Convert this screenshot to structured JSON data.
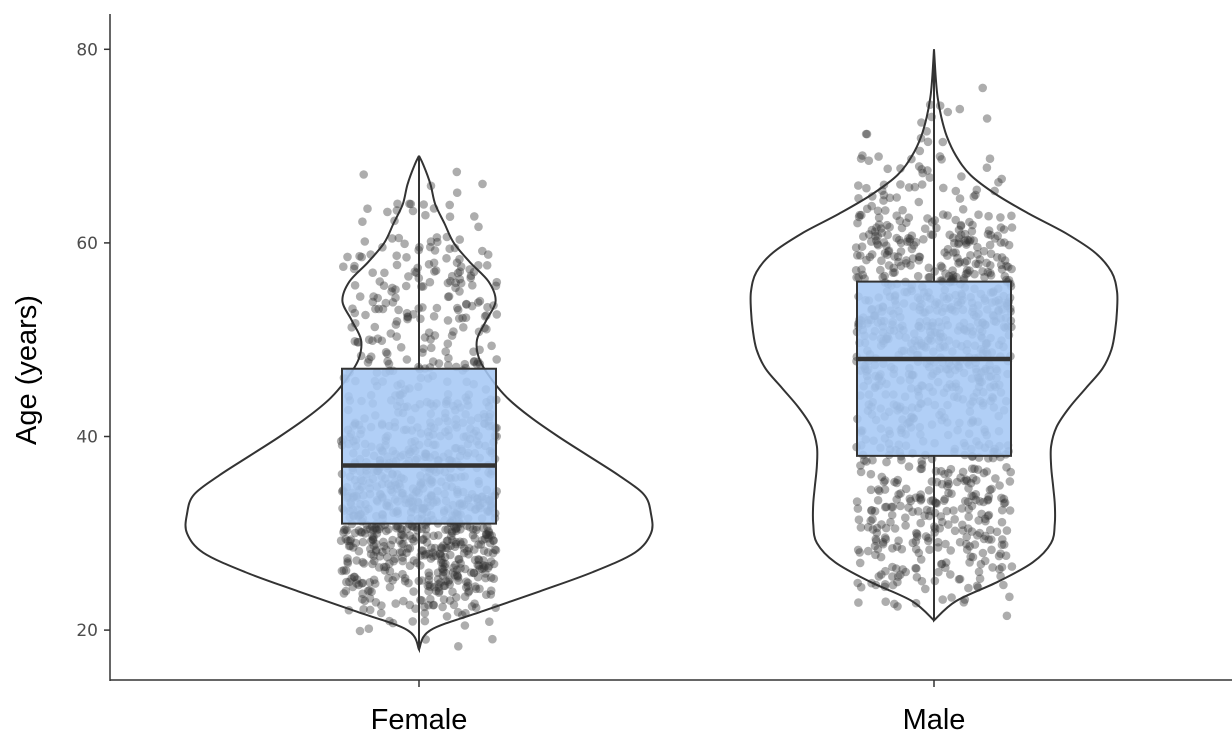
{
  "chart_data": {
    "type": "violin",
    "overlays": [
      "boxplot",
      "jittered points"
    ],
    "title": "",
    "xlabel": "",
    "ylabel": "Age (years)",
    "ylim": [
      15,
      81
    ],
    "yticks": [
      20,
      40,
      60,
      80
    ],
    "grid": false,
    "legend": "none",
    "categories": [
      "Female",
      "Male"
    ],
    "series": [
      {
        "category": "Female",
        "min": 18,
        "max": 69,
        "box": {
          "q1": 31,
          "median": 37,
          "q3": 47
        },
        "density_profile": [
          [
            18,
            0.0
          ],
          [
            20,
            0.05
          ],
          [
            22,
            0.28
          ],
          [
            24,
            0.52
          ],
          [
            26,
            0.75
          ],
          [
            28,
            0.93
          ],
          [
            30,
            1.0
          ],
          [
            32,
            1.0
          ],
          [
            34,
            0.97
          ],
          [
            36,
            0.86
          ],
          [
            38,
            0.73
          ],
          [
            40,
            0.6
          ],
          [
            42,
            0.48
          ],
          [
            44,
            0.38
          ],
          [
            46,
            0.31
          ],
          [
            48,
            0.26
          ],
          [
            50,
            0.25
          ],
          [
            52,
            0.29
          ],
          [
            54,
            0.33
          ],
          [
            56,
            0.3
          ],
          [
            58,
            0.22
          ],
          [
            60,
            0.15
          ],
          [
            62,
            0.11
          ],
          [
            64,
            0.07
          ],
          [
            66,
            0.05
          ],
          [
            68,
            0.02
          ],
          [
            69,
            0.0
          ]
        ],
        "n_points": 1000
      },
      {
        "category": "Male",
        "min": 21,
        "max": 80,
        "box": {
          "q1": 38,
          "median": 48,
          "q3": 56
        },
        "density_profile": [
          [
            21,
            0.0
          ],
          [
            23,
            0.12
          ],
          [
            25,
            0.35
          ],
          [
            27,
            0.54
          ],
          [
            29,
            0.64
          ],
          [
            31,
            0.66
          ],
          [
            33,
            0.66
          ],
          [
            35,
            0.65
          ],
          [
            37,
            0.64
          ],
          [
            39,
            0.64
          ],
          [
            41,
            0.67
          ],
          [
            43,
            0.74
          ],
          [
            45,
            0.83
          ],
          [
            47,
            0.92
          ],
          [
            49,
            0.97
          ],
          [
            51,
            0.99
          ],
          [
            53,
            1.0
          ],
          [
            55,
            1.0
          ],
          [
            57,
            0.97
          ],
          [
            59,
            0.88
          ],
          [
            61,
            0.72
          ],
          [
            63,
            0.52
          ],
          [
            65,
            0.34
          ],
          [
            67,
            0.2
          ],
          [
            69,
            0.12
          ],
          [
            71,
            0.07
          ],
          [
            73,
            0.04
          ],
          [
            75,
            0.02
          ],
          [
            77,
            0.01
          ],
          [
            80,
            0.0
          ]
        ],
        "n_points": 1000
      }
    ],
    "colors": {
      "box_fill": "#a6c8f5",
      "box_stroke": "#333333",
      "violin_stroke": "#333333",
      "point_fill": "#333333",
      "axis": "#333333"
    }
  }
}
